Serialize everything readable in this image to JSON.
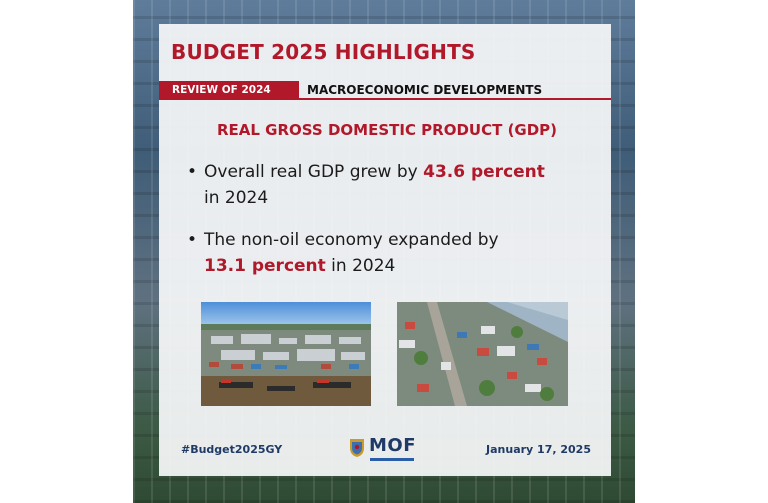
{
  "header": {
    "title": "BUDGET 2025 HIGHLIGHTS",
    "review_tag": "REVIEW OF 2024",
    "section": "MACROECONOMIC DEVELOPMENTS"
  },
  "content": {
    "heading": "REAL GROSS DOMESTIC PRODUCT (GDP)",
    "bullets": [
      {
        "before": "Overall real GDP grew by ",
        "highlight": "43.6 percent",
        "after": " in 2024"
      },
      {
        "before": "The non-oil economy expanded by ",
        "highlight": "13.1 percent",
        "after": " in 2024"
      }
    ]
  },
  "footer": {
    "hashtag": "#Budget2025GY",
    "logo_text": "MOF",
    "date": "January 17, 2025"
  },
  "colors": {
    "accent_red": "#b1182a",
    "navy": "#1f3a66",
    "panel_bg": "#f6f7f9"
  },
  "images": {
    "photo_1": "aerial-port-photo",
    "photo_2": "aerial-city-photo"
  }
}
